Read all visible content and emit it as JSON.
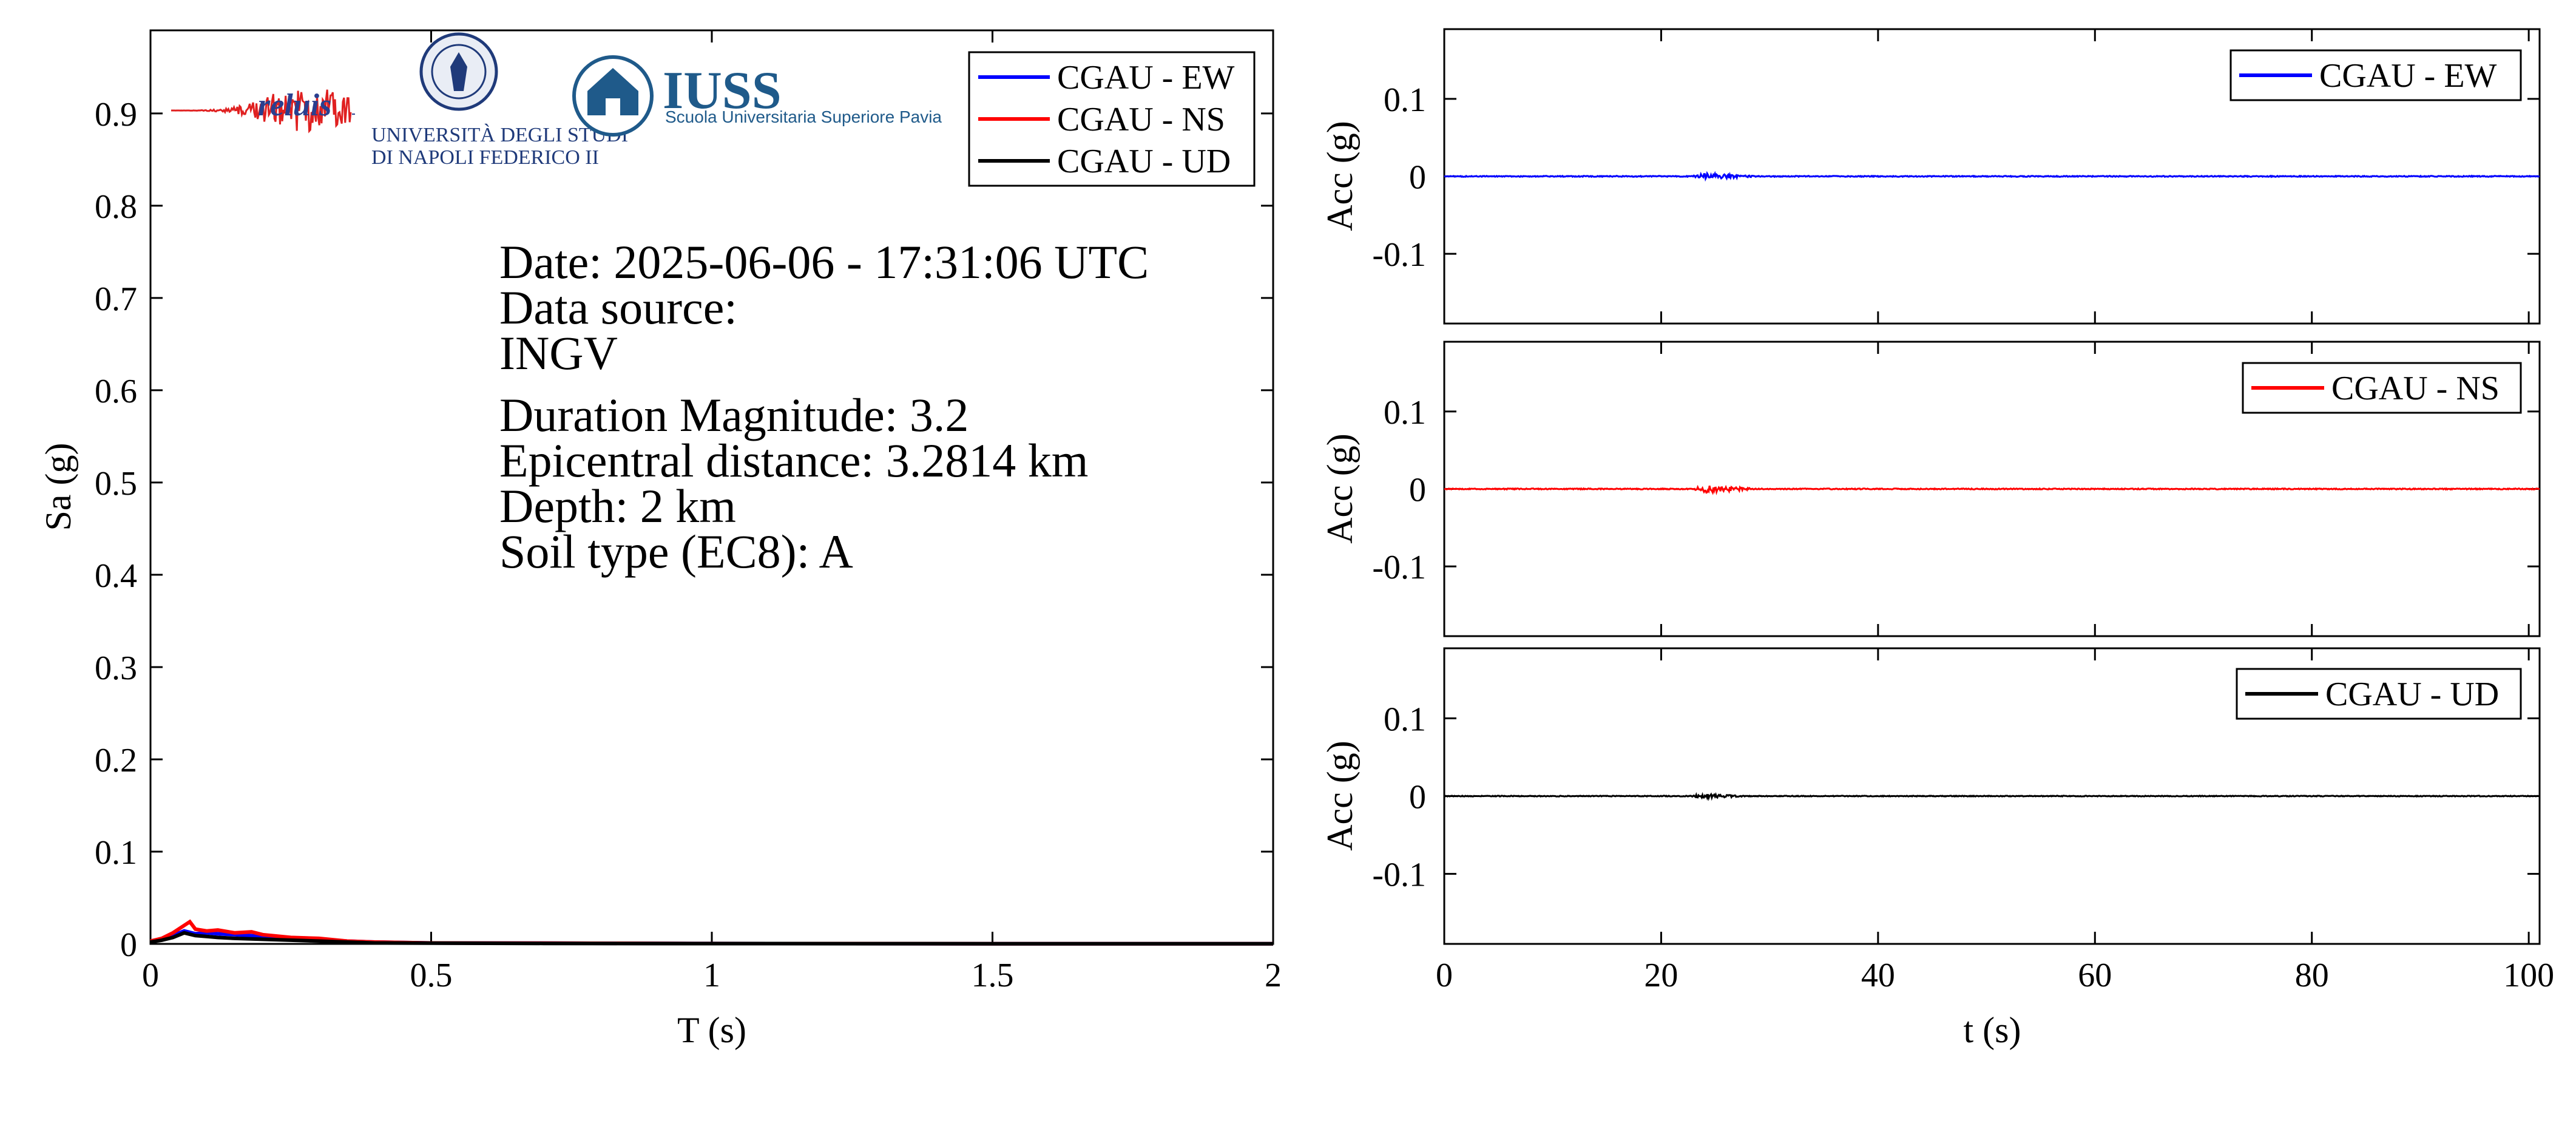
{
  "chart_data": [
    {
      "type": "line",
      "panel": "response-spectrum",
      "xlabel": "T (s)",
      "ylabel": "Sa (g)",
      "xlim": [
        0,
        2
      ],
      "ylim": [
        0,
        0.99
      ],
      "xticks": [
        0,
        0.5,
        1,
        1.5,
        2
      ],
      "xtick_labels": [
        "0",
        "0.5",
        "1",
        "1.5",
        "2"
      ],
      "yticks": [
        0,
        0.1,
        0.2,
        0.3,
        0.4,
        0.5,
        0.6,
        0.7,
        0.8,
        0.9
      ],
      "ytick_labels": [
        "0",
        "0.1",
        "0.2",
        "0.3",
        "0.4",
        "0.5",
        "0.6",
        "0.7",
        "0.8",
        "0.9"
      ],
      "legend_position": "top-right",
      "series": [
        {
          "name": "CGAU - EW",
          "color": "#0000ff",
          "x": [
            0,
            0.02,
            0.04,
            0.06,
            0.08,
            0.1,
            0.12,
            0.15,
            0.2,
            0.25,
            0.3,
            0.35,
            0.4,
            0.5,
            0.7,
            1.0,
            1.5,
            2.0
          ],
          "y": [
            0.003,
            0.005,
            0.009,
            0.014,
            0.011,
            0.012,
            0.011,
            0.01,
            0.008,
            0.006,
            0.005,
            0.003,
            0.002,
            0.001,
            0.0008,
            0.0004,
            0.0002,
            0.0001
          ]
        },
        {
          "name": "CGAU - NS",
          "color": "#ff0000",
          "x": [
            0,
            0.02,
            0.04,
            0.06,
            0.07,
            0.08,
            0.1,
            0.12,
            0.15,
            0.18,
            0.2,
            0.25,
            0.3,
            0.35,
            0.4,
            0.5,
            0.7,
            1.0,
            1.5,
            2.0
          ],
          "y": [
            0.003,
            0.006,
            0.012,
            0.02,
            0.024,
            0.016,
            0.014,
            0.015,
            0.012,
            0.013,
            0.01,
            0.007,
            0.006,
            0.003,
            0.002,
            0.001,
            0.0008,
            0.0004,
            0.0002,
            0.0001
          ]
        },
        {
          "name": "CGAU - UD",
          "color": "#000000",
          "x": [
            0,
            0.02,
            0.04,
            0.06,
            0.08,
            0.1,
            0.12,
            0.15,
            0.2,
            0.25,
            0.3,
            0.35,
            0.4,
            0.5,
            0.7,
            1.0,
            1.5,
            2.0
          ],
          "y": [
            0.002,
            0.004,
            0.007,
            0.012,
            0.009,
            0.008,
            0.007,
            0.006,
            0.005,
            0.004,
            0.003,
            0.002,
            0.001,
            0.0008,
            0.0005,
            0.0003,
            0.0002,
            0.0001
          ]
        }
      ]
    },
    {
      "type": "line",
      "panel": "accelerogram-ew",
      "ylabel": "Acc (g)",
      "xlim": [
        0,
        101
      ],
      "ylim": [
        -0.19,
        0.19
      ],
      "yticks": [
        0.1,
        0,
        -0.1
      ],
      "ytick_labels": [
        "0.1",
        "0",
        "-0.1"
      ],
      "legend_position": "top-right",
      "series": [
        {
          "name": "CGAU - EW",
          "color": "#0000ff",
          "duration": 101,
          "event_start": 22.5,
          "event_peak": 24.2,
          "event_end": 29.5,
          "peak_amplitude": 0.004,
          "noise_amplitude": 0.0006
        }
      ]
    },
    {
      "type": "line",
      "panel": "accelerogram-ns",
      "ylabel": "Acc (g)",
      "xlim": [
        0,
        101
      ],
      "ylim": [
        -0.19,
        0.19
      ],
      "yticks": [
        0.1,
        0,
        -0.1
      ],
      "ytick_labels": [
        "0.1",
        "0",
        "-0.1"
      ],
      "legend_position": "top-right",
      "series": [
        {
          "name": "CGAU - NS",
          "color": "#ff0000",
          "duration": 101,
          "event_start": 22.5,
          "event_peak": 24.2,
          "event_end": 29.5,
          "peak_amplitude": 0.005,
          "noise_amplitude": 0.0006
        }
      ]
    },
    {
      "type": "line",
      "panel": "accelerogram-ud",
      "xlabel": "t (s)",
      "ylabel": "Acc (g)",
      "xlim": [
        0,
        101
      ],
      "ylim": [
        -0.19,
        0.19
      ],
      "xticks": [
        0,
        20,
        40,
        60,
        80,
        100
      ],
      "xtick_labels": [
        "0",
        "20",
        "40",
        "60",
        "80",
        "100"
      ],
      "yticks": [
        0.1,
        0,
        -0.1
      ],
      "ytick_labels": [
        "0.1",
        "0",
        "-0.1"
      ],
      "legend_position": "top-right",
      "series": [
        {
          "name": "CGAU - UD",
          "color": "#000000",
          "duration": 101,
          "event_start": 22.5,
          "event_peak": 23.8,
          "event_end": 28.5,
          "peak_amplitude": 0.003,
          "noise_amplitude": 0.0005
        }
      ]
    }
  ],
  "annotations": {
    "date": "Date: 2025-06-06 - 17:31:06 UTC",
    "source_label": "Data source:",
    "source_value": "INGV",
    "magnitude": "Duration Magnitude: 3.2",
    "distance": "Epicentral distance: 3.2814 km",
    "depth": "Depth: 2 km",
    "soil": "Soil type (EC8): A"
  },
  "logos": {
    "reluis": "reluis",
    "unina_line1": "UNIVERSITÀ DEGLI STUDI",
    "unina_line2": "DI NAPOLI FEDERICO II",
    "iuss": "IUSS",
    "iuss_sub": "Scuola Universitaria Superiore Pavia"
  }
}
